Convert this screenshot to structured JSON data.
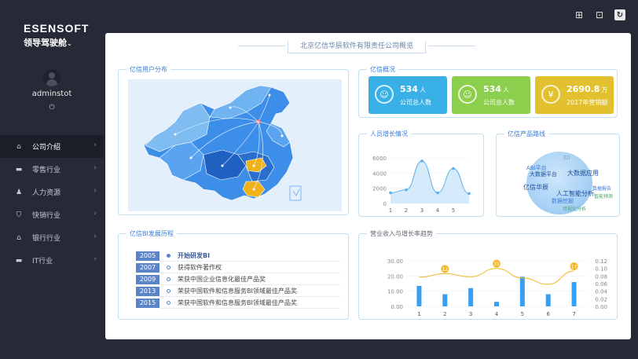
{
  "brand": {
    "en": "ESENSOFT",
    "cn": "领导驾驶舱",
    "caret": "⌄"
  },
  "user": {
    "name": "adminstot"
  },
  "nav": {
    "items": [
      {
        "label": "公司介绍",
        "icon": "home-icon",
        "glyph": "⌂"
      },
      {
        "label": "零售行业",
        "icon": "cart-icon",
        "glyph": "▬"
      },
      {
        "label": "人力资源",
        "icon": "people-icon",
        "glyph": "♟"
      },
      {
        "label": "快销行业",
        "icon": "shield-icon",
        "glyph": "⛉"
      },
      {
        "label": "银行行业",
        "icon": "bank-icon",
        "glyph": "⌂"
      },
      {
        "label": "IT行业",
        "icon": "monitor-icon",
        "glyph": "▬"
      }
    ]
  },
  "main": {
    "title": "北京亿信华辰软件有限责任公司概览"
  },
  "map": {
    "label": "亿信用户分布",
    "colors": {
      "base": "#3d8ee8",
      "light": "#6fb3f0",
      "dark": "#2060c0",
      "highlight": "#f0b21a"
    }
  },
  "overview": {
    "label": "亿信概况",
    "cards": [
      {
        "value": "534",
        "unit": "人",
        "sub": "公司总人数",
        "icon": "person-icon",
        "glyph": "👤",
        "color": "#39b0e5"
      },
      {
        "value": "534",
        "unit": "人",
        "sub": "公司总人数",
        "icon": "person-icon",
        "glyph": "👤",
        "color": "#8ccf4c"
      },
      {
        "value": "2690.8",
        "unit": "万",
        "sub": "2017年营销额",
        "icon": "yen-icon",
        "glyph": "¥",
        "color": "#e3c02d"
      }
    ]
  },
  "growth": {
    "label": "人员增长情况",
    "chart_data": {
      "type": "area",
      "x": [
        1,
        2,
        3,
        4,
        5,
        6
      ],
      "values": [
        1400,
        1800,
        5600,
        1400,
        4600,
        1300
      ],
      "xticks": [
        "1",
        "2",
        "3",
        "4",
        "5"
      ],
      "yticks": [
        "0",
        "2000",
        "4000",
        "6000"
      ],
      "ylim": [
        0,
        6000
      ]
    }
  },
  "products": {
    "label": "亿信产品路线",
    "words": [
      "3D",
      "ABI平台",
      "大数据平台",
      "大数据应用",
      "亿信华辰",
      "数据报告",
      "人工智能分析",
      "智能预测",
      "数据挖掘",
      "可视化分析"
    ]
  },
  "development": {
    "label": "亿信BI发展历程",
    "items": [
      {
        "year": "2005",
        "text": "开始研发BI"
      },
      {
        "year": "2007",
        "text": "获得软件著作权"
      },
      {
        "year": "2009",
        "text": "荣获中国企业信息化最佳产品奖"
      },
      {
        "year": "2013",
        "text": "荣获中国软件和信息服务BI领域最佳产品奖"
      },
      {
        "year": "2015",
        "text": "荣获中国软件和信息服务BI领域最佳产品奖"
      }
    ]
  },
  "revenue": {
    "label": "营业收入与增长率趋势",
    "chart_data": {
      "type": "bar",
      "categories": [
        "1",
        "2",
        "3",
        "4",
        "5",
        "6",
        "7"
      ],
      "bars": [
        13.5,
        8,
        12,
        3,
        19.5,
        8,
        16
      ],
      "line": [
        0.077,
        0.086,
        0.078,
        0.1,
        0.075,
        0.058,
        0.093
      ],
      "line_labels": [
        "",
        "12",
        "",
        "31",
        "",
        "",
        "17"
      ],
      "y_left_ticks": [
        "0.00",
        "10.00",
        "20.00",
        "30.00"
      ],
      "y_left_lim": [
        0,
        30
      ],
      "y_right_ticks": [
        "0.00",
        "0.02",
        "0.04",
        "0.06",
        "0.08",
        "0.10",
        "0.12"
      ],
      "y_right_lim": [
        0,
        0.12
      ],
      "colors": {
        "bar": "#3a9ff0",
        "line": "#f3b72a"
      }
    }
  }
}
